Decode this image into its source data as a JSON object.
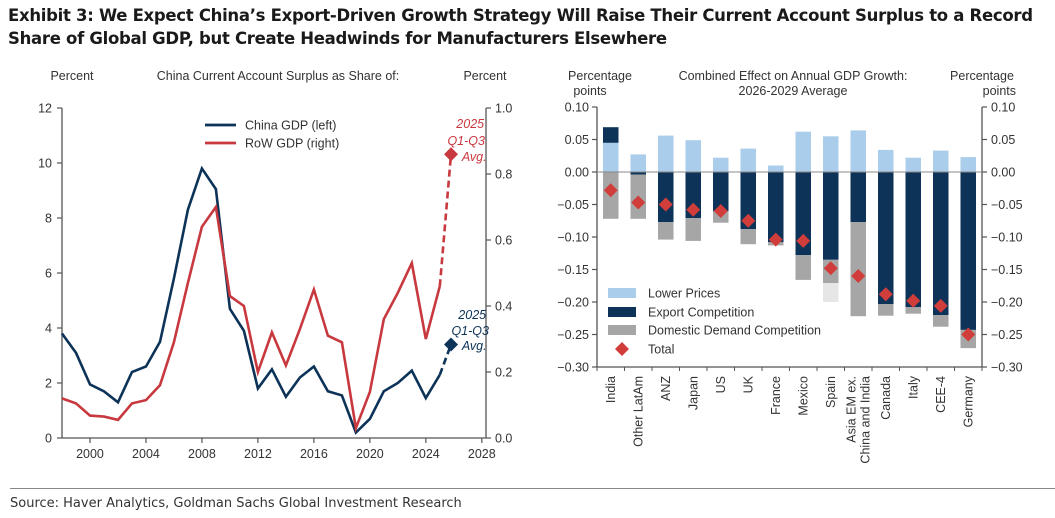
{
  "title": "Exhibit 3: We Expect China’s Export-Driven Growth Strategy Will Raise Their Current Account Surplus to a Record Share of Global GDP, but Create Headwinds for Manufacturers Elsewhere",
  "source": "Source: Haver Analytics, Goldman Sachs Global Investment Research",
  "colors": {
    "navy": "#0d3358",
    "red": "#c8393f",
    "light_blue": "#a9cdea",
    "grey": "#a6a6a6",
    "light_grey": "#e6e6e6",
    "diamond": "#d13d3a"
  },
  "chart_data": [
    {
      "type": "line",
      "title": "China Current Account Surplus as Share of:",
      "ylabel_left": "Percent",
      "ylabel_right": "Percent",
      "x_ticks": [
        2000,
        2004,
        2008,
        2012,
        2016,
        2020,
        2024,
        2028
      ],
      "xlim": [
        1998,
        2028.3
      ],
      "ylim_left": [
        0,
        12
      ],
      "yticks_left": [
        0,
        2,
        4,
        6,
        8,
        10,
        12
      ],
      "ylim_right": [
        0,
        1.0
      ],
      "yticks_right": [
        "0.0",
        "0.2",
        "0.4",
        "0.6",
        "0.8",
        "1.0"
      ],
      "legend": [
        "China GDP (left)",
        "RoW GDP (right)"
      ],
      "legend_position": "top-center",
      "series": [
        {
          "name": "China GDP (left)",
          "axis": "left",
          "x": [
            1998,
            1999,
            2000,
            2001,
            2002,
            2003,
            2004,
            2005,
            2006,
            2007,
            2008,
            2009,
            2010,
            2011,
            2012,
            2013,
            2014,
            2015,
            2016,
            2017,
            2018,
            2019,
            2020,
            2021,
            2022,
            2023,
            2024,
            2025
          ],
          "values": [
            3.8,
            3.1,
            1.95,
            1.7,
            1.3,
            2.4,
            2.6,
            3.5,
            5.8,
            8.3,
            9.8,
            9.05,
            4.7,
            3.9,
            1.8,
            2.5,
            1.5,
            2.2,
            2.6,
            1.7,
            1.55,
            0.2,
            0.7,
            1.7,
            2.0,
            2.45,
            1.45,
            2.3
          ],
          "projection": {
            "label": "2025 Q1-Q3 Avg.",
            "x": 2025.8,
            "value": 3.4
          }
        },
        {
          "name": "RoW GDP (right)",
          "axis": "right",
          "x": [
            1998,
            1999,
            2000,
            2001,
            2002,
            2003,
            2004,
            2005,
            2006,
            2007,
            2008,
            2009,
            2010,
            2011,
            2012,
            2013,
            2014,
            2015,
            2016,
            2017,
            2018,
            2019,
            2020,
            2021,
            2022,
            2023,
            2024,
            2025
          ],
          "values": [
            0.12,
            0.105,
            0.068,
            0.065,
            0.055,
            0.105,
            0.115,
            0.16,
            0.29,
            0.47,
            0.64,
            0.7,
            0.43,
            0.4,
            0.2,
            0.32,
            0.22,
            0.33,
            0.45,
            0.31,
            0.29,
            0.03,
            0.14,
            0.36,
            0.44,
            0.53,
            0.3,
            0.46
          ],
          "projection": {
            "label": "2025 Q1-Q3 Avg.",
            "x": 2025.8,
            "value": 0.86
          }
        }
      ],
      "annotations": [
        {
          "text_lines": [
            "2025",
            "Q1-Q3",
            "Avg."
          ],
          "series": "RoW GDP (right)"
        },
        {
          "text_lines": [
            "2025",
            "Q1-Q3",
            "Avg."
          ],
          "series": "China GDP (left)"
        }
      ]
    },
    {
      "type": "bar",
      "stacked": true,
      "title": "Combined Effect on Annual GDP Growth: 2026-2029 Average",
      "title_lines": [
        "Combined Effect on Annual GDP Growth:",
        "2026-2029 Average"
      ],
      "ylabel_left_lines": [
        "Percentage",
        "points"
      ],
      "ylabel_right_lines": [
        "Percentage",
        "points"
      ],
      "ylim": [
        -0.3,
        0.1
      ],
      "yticks": [
        "0.10",
        "0.05",
        "0.00",
        "-0.05",
        "-0.10",
        "-0.15",
        "-0.20",
        "-0.25",
        "-0.30"
      ],
      "categories": [
        "India",
        "Other LatAm",
        "ANZ",
        "Japan",
        "US",
        "UK",
        "France",
        "Mexico",
        "Spain",
        "Asia EM ex. China and India",
        "Canada",
        "Italy",
        "CEE-4",
        "Germany"
      ],
      "category_lines": [
        [
          "India"
        ],
        [
          "Other LatAm"
        ],
        [
          "ANZ"
        ],
        [
          "Japan"
        ],
        [
          "US"
        ],
        [
          "UK"
        ],
        [
          "France"
        ],
        [
          "Mexico"
        ],
        [
          "Spain"
        ],
        [
          "Asia EM ex.",
          "China and India"
        ],
        [
          "Canada"
        ],
        [
          "Italy"
        ],
        [
          "CEE-4"
        ],
        [
          "Germany"
        ]
      ],
      "legend_position": "bottom-left",
      "series": [
        {
          "name": "Lower Prices",
          "values": [
            0.045,
            0.027,
            0.056,
            0.049,
            0.022,
            0.036,
            0.01,
            0.062,
            0.055,
            0.064,
            0.034,
            0.022,
            0.033,
            0.023
          ]
        },
        {
          "name": "Export Competition",
          "values": [
            0.024,
            -0.004,
            -0.077,
            -0.071,
            -0.06,
            -0.088,
            -0.108,
            -0.128,
            -0.135,
            -0.077,
            -0.203,
            -0.208,
            -0.22,
            -0.243
          ]
        },
        {
          "name": "Domestic Demand Competition",
          "values": [
            -0.072,
            -0.068,
            -0.027,
            -0.035,
            -0.018,
            -0.023,
            -0.005,
            -0.038,
            -0.036,
            -0.145,
            -0.018,
            -0.01,
            -0.018,
            -0.028
          ]
        },
        {
          "name": "Domestic Demand Competition (faded)",
          "values": [
            0,
            0,
            0,
            0,
            0,
            0,
            0,
            0,
            -0.029,
            0,
            0,
            0,
            0,
            0
          ]
        },
        {
          "name": "Total",
          "marker": "diamond",
          "values": [
            -0.028,
            -0.047,
            -0.05,
            -0.058,
            -0.06,
            -0.075,
            -0.104,
            -0.106,
            -0.148,
            -0.16,
            -0.188,
            -0.198,
            -0.206,
            -0.25
          ]
        }
      ],
      "legend": [
        "Lower Prices",
        "Export Competition",
        "Domestic Demand Competition",
        "Total"
      ]
    }
  ]
}
